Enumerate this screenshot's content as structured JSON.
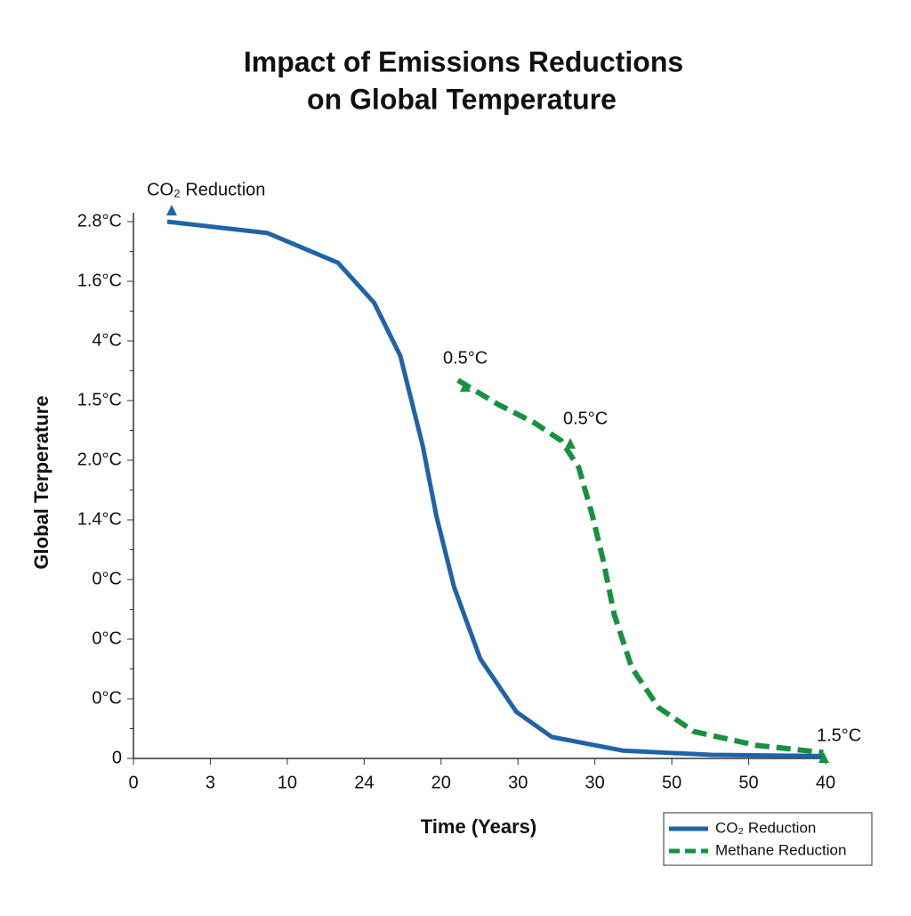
{
  "chart_data": {
    "type": "line",
    "title": [
      "Impact of Emissions Reductions",
      "on Global Temperature"
    ],
    "x_label": "Time (Years)",
    "y_label": "Global Terperature",
    "xlim": [
      0,
      9
    ],
    "ylim": [
      0,
      9
    ],
    "xticks": [
      {
        "value": 0,
        "label": "0"
      },
      {
        "value": 1,
        "label": "3"
      },
      {
        "value": 2,
        "label": "10"
      },
      {
        "value": 3,
        "label": "24"
      },
      {
        "value": 4,
        "label": "20"
      },
      {
        "value": 5,
        "label": "30"
      },
      {
        "value": 6,
        "label": "30"
      },
      {
        "value": 7,
        "label": "50"
      },
      {
        "value": 8,
        "label": "50"
      },
      {
        "value": 9,
        "label": "40"
      }
    ],
    "yticks": [
      {
        "value": 0,
        "label": "0"
      },
      {
        "value": 1,
        "label": "0°C"
      },
      {
        "value": 2,
        "label": "0°C"
      },
      {
        "value": 3,
        "label": "0°C"
      },
      {
        "value": 4,
        "label": "1.4°C"
      },
      {
        "value": 5,
        "label": "2.0°C"
      },
      {
        "value": 6,
        "label": "1.5°C"
      },
      {
        "value": 7,
        "label": "4°C"
      },
      {
        "value": 8,
        "label": "1.6°C"
      },
      {
        "value": 9,
        "label": "2.8°C"
      }
    ],
    "series": [
      {
        "name": "CO₂ Reduction",
        "color": "#1f63a8",
        "dash": false,
        "x": [
          0.44,
          1.74,
          2.66,
          3.13,
          3.47,
          3.76,
          3.94,
          4.17,
          4.51,
          4.98,
          5.44,
          6.37,
          7.52,
          8.97
        ],
        "values": [
          9.0,
          8.81,
          8.31,
          7.64,
          6.75,
          5.25,
          4.06,
          2.87,
          1.67,
          0.78,
          0.36,
          0.13,
          0.06,
          0.04
        ]
      },
      {
        "name": "Methane Reduction",
        "color": "#17913f",
        "dash": true,
        "x": [
          4.22,
          4.75,
          5.21,
          5.56,
          5.79,
          5.97,
          6.11,
          6.25,
          6.48,
          6.83,
          7.29,
          8.1,
          8.97
        ],
        "values": [
          6.34,
          5.93,
          5.63,
          5.33,
          4.88,
          4.06,
          3.31,
          2.42,
          1.52,
          0.85,
          0.45,
          0.22,
          0.1
        ]
      }
    ],
    "annotations": [
      "CO₂ Reduction",
      "0.5°C",
      "0.5°C",
      "1.5°C"
    ],
    "legend": "lower right"
  }
}
